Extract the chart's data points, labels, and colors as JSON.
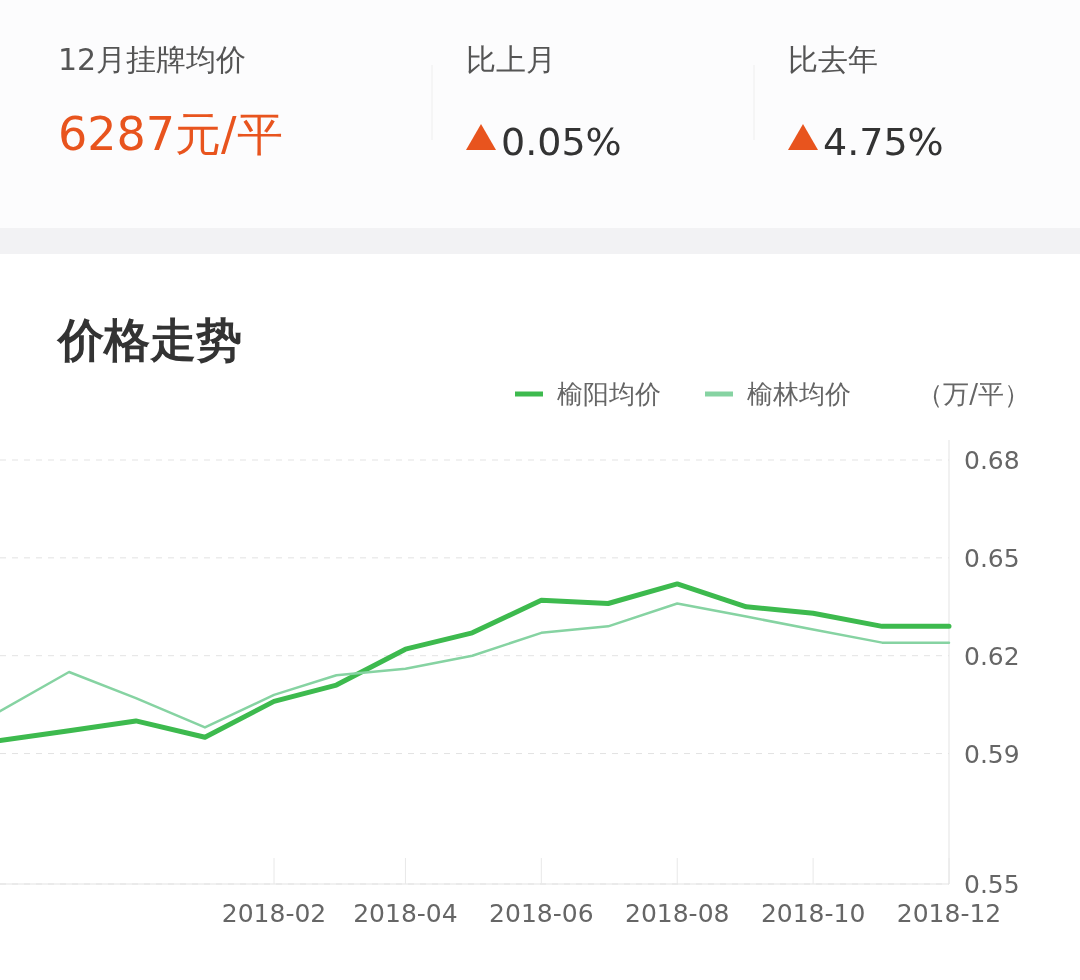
{
  "chart_data": [
    {
      "type": "other",
      "annotations": [
        "12月挂牌均价",
        "6287元/平",
        "比上月",
        "0.05%",
        "比去年",
        "4.75%"
      ]
    },
    {
      "type": "line",
      "title": "价格走势",
      "ylabel": "（万/平）",
      "x": [
        "2017-10",
        "2017-11",
        "2017-12",
        "2018-01",
        "2018-02",
        "2018-03",
        "2018-04",
        "2018-05",
        "2018-06",
        "2018-07",
        "2018-08",
        "2018-09",
        "2018-10",
        "2018-11",
        "2018-12"
      ],
      "series": [
        {
          "name": "榆阳均价",
          "color": "#3dba4e",
          "values": [
            0.594,
            0.597,
            0.6,
            0.595,
            0.606,
            0.611,
            0.622,
            0.627,
            0.637,
            0.636,
            0.642,
            0.635,
            0.633,
            0.629,
            0.629
          ]
        },
        {
          "name": "榆林均价",
          "color": "#86d3a2",
          "values": [
            0.603,
            0.615,
            0.607,
            0.598,
            0.608,
            0.614,
            0.616,
            0.62,
            0.627,
            0.629,
            0.636,
            0.632,
            0.628,
            0.624,
            0.624
          ]
        }
      ],
      "xlim": [
        "2017-10",
        "2018-12"
      ],
      "xticks": [
        "2018-02",
        "2018-04",
        "2018-06",
        "2018-08",
        "2018-10",
        "2018-12"
      ],
      "ylim": [
        0.55,
        0.68
      ],
      "yticks": [
        0.55,
        0.59,
        0.62,
        0.65,
        0.68
      ],
      "grid": "y",
      "legend": "top right",
      "line_style": "solid",
      "marker": "none"
    }
  ]
}
